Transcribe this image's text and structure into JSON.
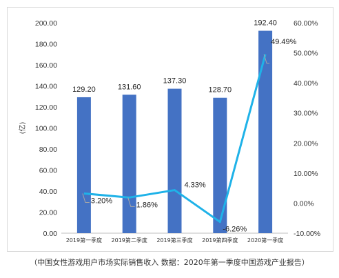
{
  "chart_data": {
    "type": "bar",
    "categories": [
      "2019第一季度",
      "2019第二季度",
      "2019第三季度",
      "2019第四季度",
      "2020第一季度"
    ],
    "ylabel": "(亿)",
    "ylim": [
      0,
      200
    ],
    "yticks": [
      "0.00",
      "20.00",
      "40.00",
      "60.00",
      "80.00",
      "100.00",
      "120.00",
      "140.00",
      "160.00",
      "180.00",
      "200.00"
    ],
    "y2lim": [
      -10,
      60
    ],
    "y2ticks": [
      "-10.00%",
      "0.00%",
      "10.00%",
      "20.00%",
      "30.00%",
      "40.00%",
      "50.00%",
      "60.00%"
    ],
    "grid": false,
    "series": [
      {
        "type": "bar",
        "axis": "left",
        "color": "#4472c4",
        "values": [
          129.2,
          131.6,
          137.3,
          128.7,
          192.4
        ],
        "labels": [
          "129.20",
          "131.60",
          "137.30",
          "128.70",
          "192.40"
        ]
      },
      {
        "type": "line",
        "axis": "right",
        "color": "#1fb2e8",
        "values": [
          3.2,
          1.86,
          4.33,
          -6.26,
          49.49
        ],
        "labels": [
          "3.20%",
          "1.86%",
          "4.33%",
          "-6.26%",
          "49.49%"
        ]
      }
    ]
  },
  "caption": "（中国女性游戏用户市场实际销售收入 数据：2020年第一季度中国游戏产业报告）"
}
